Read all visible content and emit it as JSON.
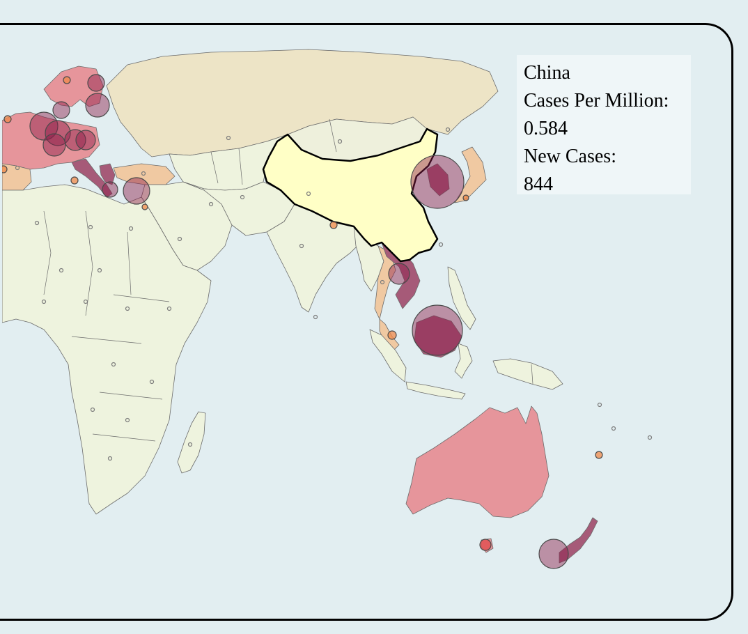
{
  "tooltip": {
    "country": "China",
    "cases_per_million_label": "Cases Per Million:",
    "cases_per_million_value": "0.584",
    "new_cases_label": "New Cases:",
    "new_cases_value": "844"
  },
  "selected_country": "China",
  "colors": {
    "ocean": "#e2eef1",
    "land_default": "#eef3de",
    "russia": "#ede4c6",
    "mongolia": "#eef0dc",
    "selected_country": "#ffffc6",
    "high_incidence": "#e6959b",
    "very_high_incidence": "#a65a78",
    "medium_incidence": "#f0c9a2",
    "bubble_fill": "#8c1c4a",
    "border": "#000000"
  },
  "legend": []
}
